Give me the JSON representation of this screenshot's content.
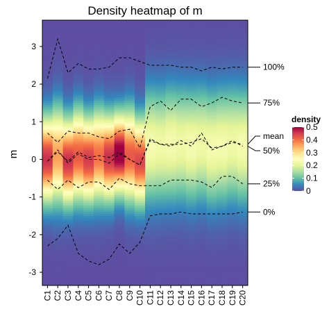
{
  "chart_data": {
    "type": "heatmap",
    "title": "Density heatmap of m",
    "xlabel": "",
    "ylabel": "m",
    "categories": [
      "C1",
      "C2",
      "C3",
      "C4",
      "C5",
      "C6",
      "C7",
      "C8",
      "C9",
      "C10",
      "C11",
      "C12",
      "C13",
      "C14",
      "C15",
      "C16",
      "C17",
      "C18",
      "C19",
      "C20"
    ],
    "ylim": [
      -3.35,
      3.7
    ],
    "yticks": [
      -3,
      -2,
      -1,
      0,
      1,
      2,
      3
    ],
    "color_scale": {
      "title": "density",
      "min": 0,
      "max": 0.5,
      "ticks": [
        0,
        0.1,
        0.2,
        0.3,
        0.4,
        0.5
      ],
      "colors": [
        "#5E4FA2",
        "#3288BD",
        "#66C2A5",
        "#ABDDA4",
        "#E6F598",
        "#FFFFBF",
        "#FEE08B",
        "#FDAE61",
        "#F46D43",
        "#D53E4F",
        "#9E0142"
      ]
    },
    "density_params": {
      "peak": [
        0.46,
        0.36,
        0.46,
        0.42,
        0.45,
        0.4,
        0.46,
        0.52,
        0.42,
        0.44,
        0.23,
        0.22,
        0.23,
        0.22,
        0.23,
        0.22,
        0.23,
        0.23,
        0.22,
        0.23
      ],
      "center": [
        0.0,
        0.1,
        -0.05,
        0.1,
        0.0,
        0.1,
        0.05,
        0.15,
        0.1,
        -0.05,
        0.35,
        0.35,
        0.4,
        0.4,
        0.35,
        0.4,
        0.3,
        0.35,
        0.4,
        0.35
      ],
      "width": [
        0.75,
        0.85,
        0.75,
        0.8,
        0.75,
        0.8,
        0.75,
        0.7,
        0.8,
        0.75,
        1.0,
        1.0,
        1.0,
        1.0,
        1.0,
        1.0,
        1.0,
        1.0,
        1.0,
        1.0
      ]
    },
    "series": [
      {
        "name": "100%",
        "values": [
          2.15,
          3.2,
          2.3,
          2.55,
          2.4,
          2.4,
          2.45,
          2.7,
          2.7,
          2.6,
          2.5,
          2.5,
          2.5,
          2.45,
          2.45,
          2.35,
          2.45,
          2.4,
          2.45,
          2.45
        ]
      },
      {
        "name": "75%",
        "values": [
          0.7,
          0.45,
          0.75,
          0.7,
          0.7,
          0.6,
          0.55,
          0.75,
          0.8,
          0.3,
          1.4,
          1.55,
          1.3,
          1.6,
          1.6,
          1.4,
          1.5,
          1.65,
          1.55,
          1.5
        ]
      },
      {
        "name": "mean",
        "values": [
          -0.05,
          0.2,
          -0.05,
          0.2,
          0.05,
          0.1,
          0.05,
          0.2,
          0.0,
          -0.15,
          0.55,
          0.4,
          0.4,
          0.4,
          0.45,
          0.55,
          0.3,
          0.35,
          0.45,
          0.4
        ]
      },
      {
        "name": "50%",
        "values": [
          -0.05,
          0.25,
          -0.1,
          0.15,
          0.0,
          0.0,
          -0.1,
          0.15,
          0.0,
          -0.15,
          0.5,
          0.4,
          0.35,
          0.5,
          0.35,
          0.7,
          0.25,
          0.35,
          0.5,
          0.35
        ]
      },
      {
        "name": "25%",
        "values": [
          -0.55,
          -0.8,
          -0.55,
          -0.75,
          -0.6,
          -0.6,
          -0.8,
          -0.5,
          -0.65,
          -0.7,
          -0.7,
          -0.7,
          -0.55,
          -0.55,
          -0.55,
          -0.6,
          -0.75,
          -0.45,
          -0.45,
          -0.65
        ]
      },
      {
        "name": "0%",
        "values": [
          -2.3,
          -2.1,
          -1.75,
          -2.5,
          -2.7,
          -2.8,
          -2.65,
          -2.25,
          -2.5,
          -2.2,
          -1.5,
          -1.45,
          -1.45,
          -1.4,
          -1.45,
          -1.45,
          -1.45,
          -1.45,
          -1.45,
          -1.4
        ]
      }
    ],
    "grid": false,
    "legend": "right"
  }
}
